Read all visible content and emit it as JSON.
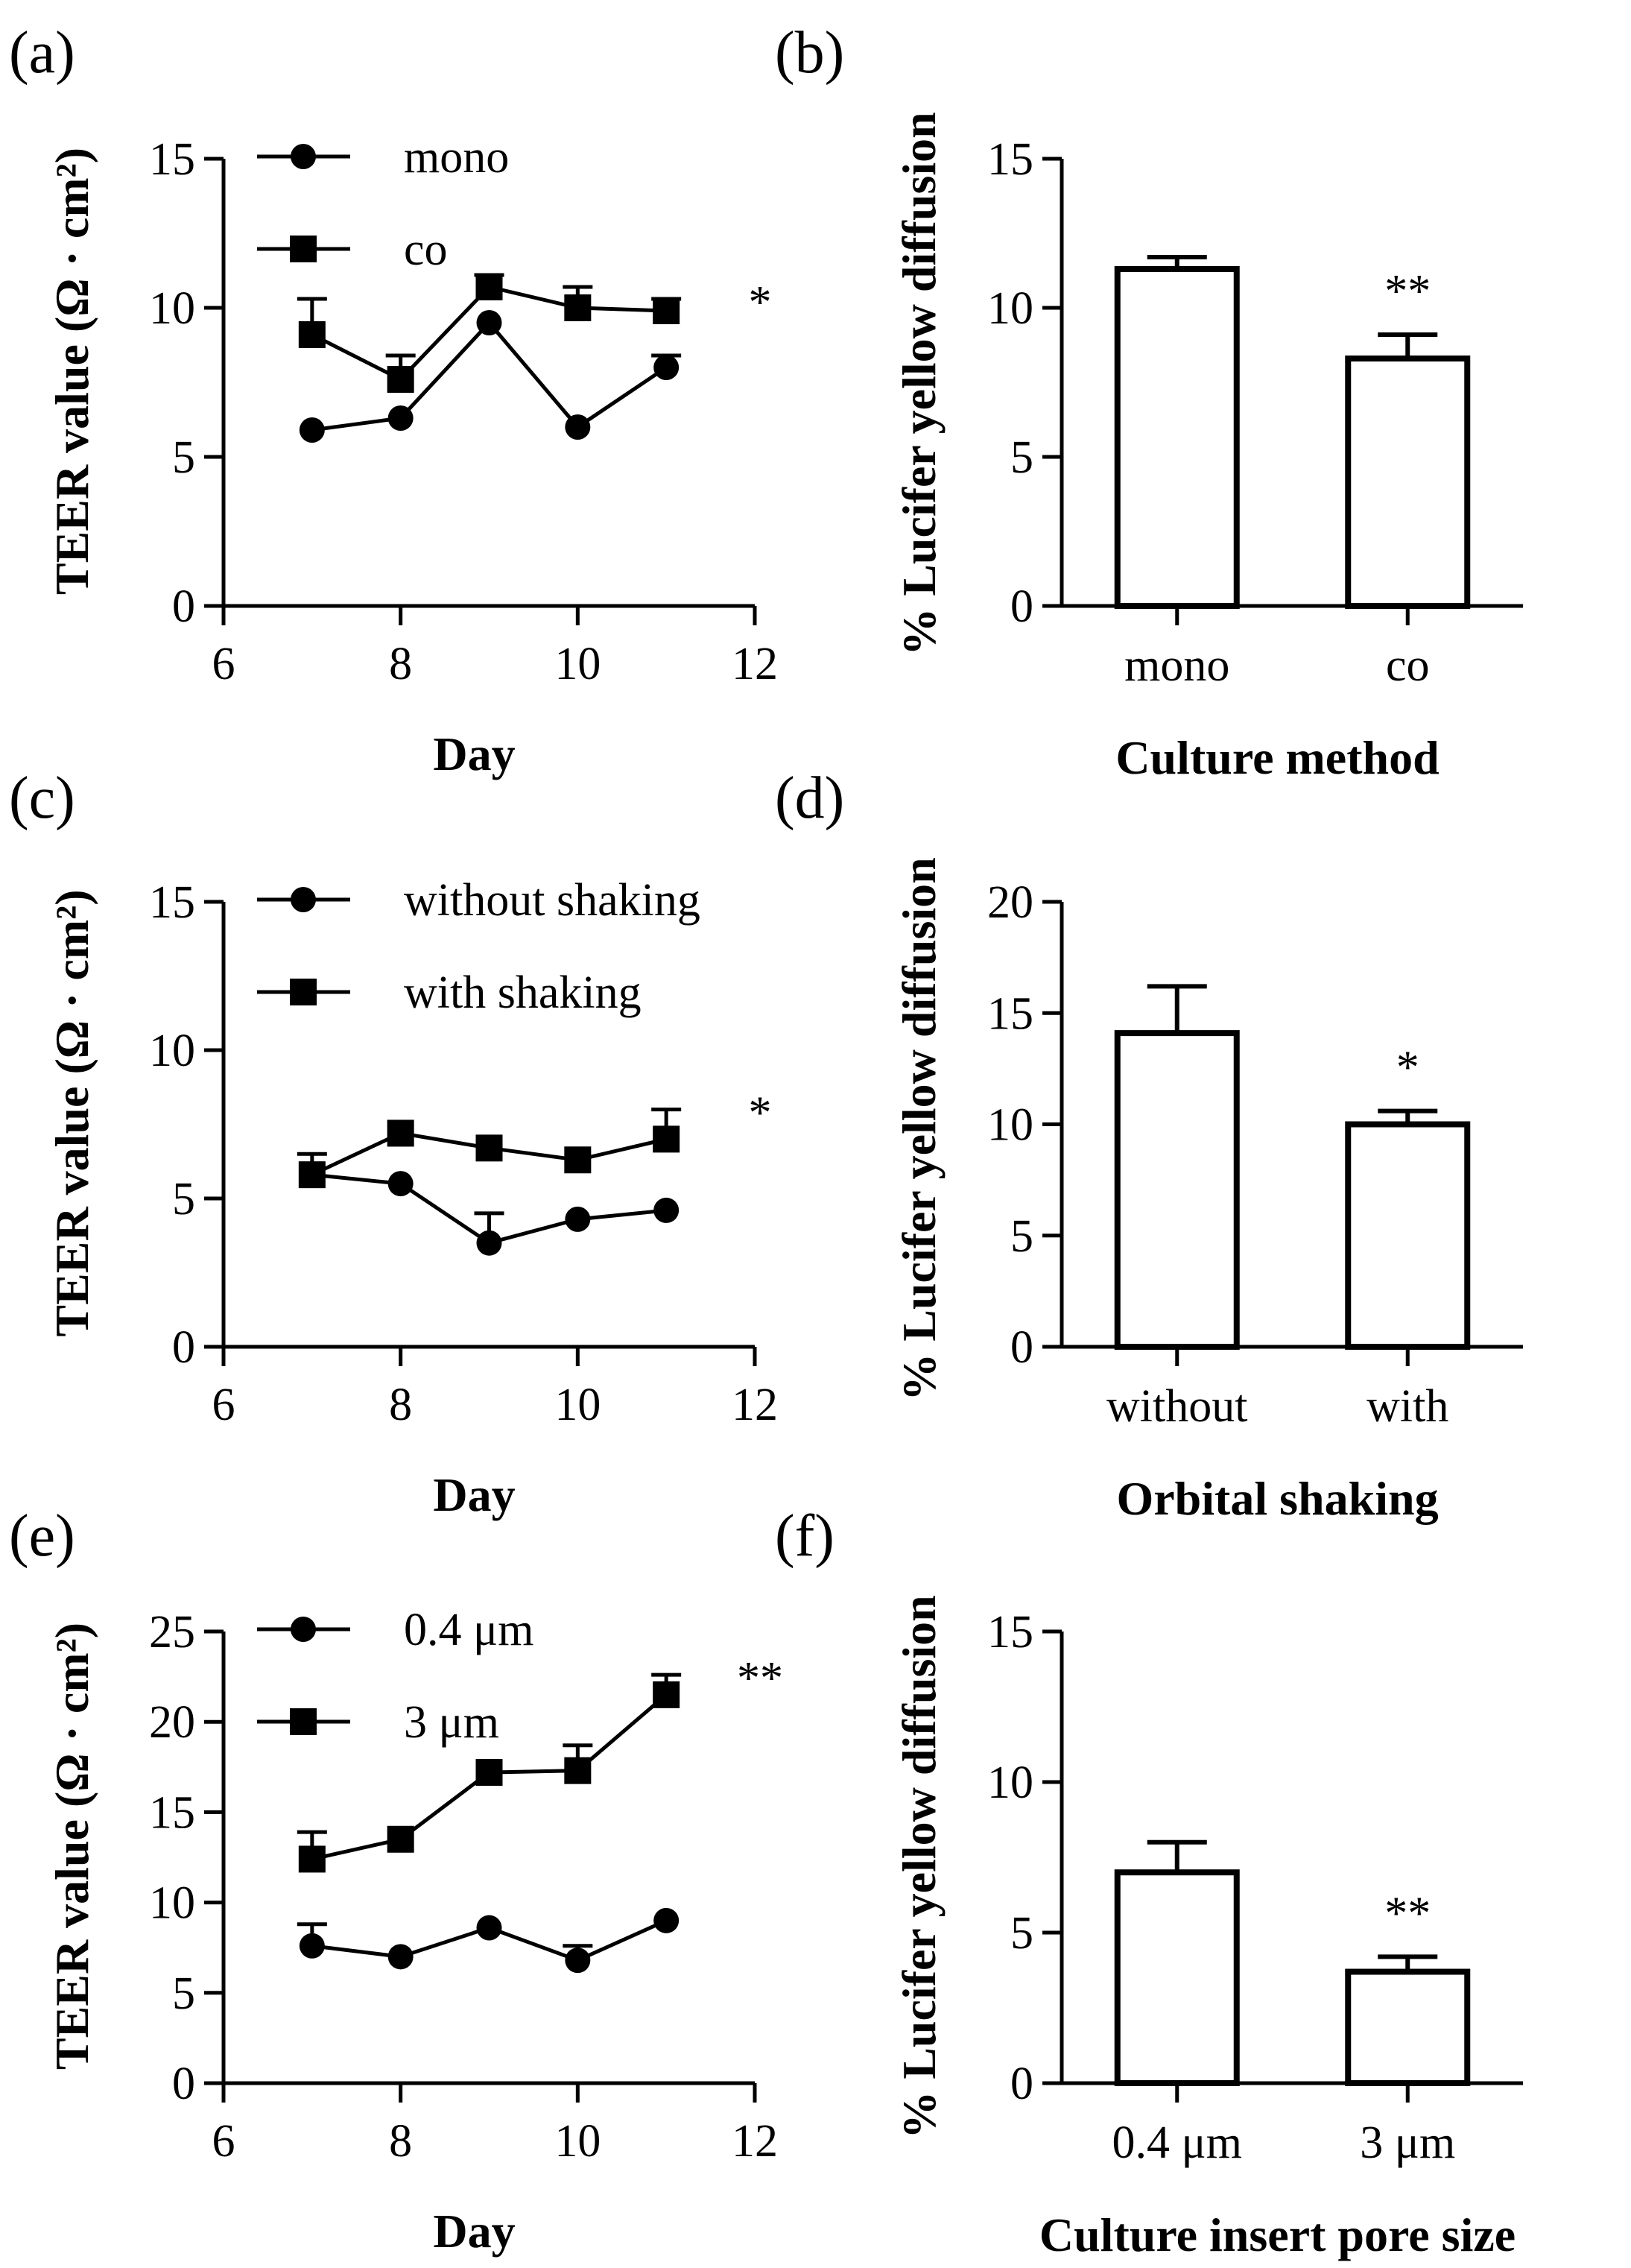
{
  "colors": {
    "ink": "#000000",
    "background": "#ffffff"
  },
  "chart_data": [
    {
      "id": "a",
      "panel_label": "(a)",
      "type": "line",
      "xlabel": "Day",
      "ylabel": "TEER value (Ω · cm²)",
      "xlim": [
        6,
        12
      ],
      "ylim": [
        0,
        15
      ],
      "xticks": [
        6,
        8,
        10,
        12
      ],
      "yticks": [
        0,
        5,
        10,
        15
      ],
      "x": [
        7,
        8,
        9,
        10,
        11
      ],
      "series": [
        {
          "name": "mono",
          "marker": "circle",
          "values": [
            5.9,
            6.3,
            9.5,
            6.0,
            8.0
          ],
          "errors": [
            0,
            0,
            0,
            0,
            0.4
          ]
        },
        {
          "name": "co",
          "marker": "square",
          "values": [
            9.1,
            7.6,
            10.7,
            10.0,
            9.9
          ],
          "errors": [
            1.2,
            0.8,
            0.4,
            0.7,
            0.4
          ]
        }
      ],
      "significance": "*"
    },
    {
      "id": "b",
      "panel_label": "(b)",
      "type": "bar",
      "xlabel": "Culture method",
      "ylabel": "% Lucifer yellow diffusion",
      "ylim": [
        0,
        15
      ],
      "yticks": [
        0,
        5,
        10,
        15
      ],
      "categories": [
        "mono",
        "co"
      ],
      "values": [
        11.3,
        8.3
      ],
      "errors": [
        0.4,
        0.8
      ],
      "significance": [
        "",
        "**"
      ]
    },
    {
      "id": "c",
      "panel_label": "(c)",
      "type": "line",
      "xlabel": "Day",
      "ylabel": "TEER value (Ω · cm²)",
      "xlim": [
        6,
        12
      ],
      "ylim": [
        0,
        15
      ],
      "xticks": [
        6,
        8,
        10,
        12
      ],
      "yticks": [
        0,
        5,
        10,
        15
      ],
      "x": [
        7,
        8,
        9,
        10,
        11
      ],
      "series": [
        {
          "name": "without shaking",
          "marker": "circle",
          "values": [
            5.8,
            5.5,
            3.5,
            4.3,
            4.6
          ],
          "errors": [
            0,
            0,
            1.0,
            0,
            0
          ]
        },
        {
          "name": "with shaking",
          "marker": "square",
          "values": [
            5.8,
            7.2,
            6.7,
            6.3,
            7.0
          ],
          "errors": [
            0.7,
            0,
            0,
            0,
            1.0
          ]
        }
      ],
      "significance": "*"
    },
    {
      "id": "d",
      "panel_label": "(d)",
      "type": "bar",
      "xlabel": "Orbital shaking",
      "ylabel": "% Lucifer yellow diffusion",
      "ylim": [
        0,
        20
      ],
      "yticks": [
        0,
        5,
        10,
        15,
        20
      ],
      "categories": [
        "without",
        "with"
      ],
      "values": [
        14.1,
        10.0
      ],
      "errors": [
        2.1,
        0.6
      ],
      "significance": [
        "",
        "*"
      ]
    },
    {
      "id": "e",
      "panel_label": "(e)",
      "type": "line",
      "xlabel": "Day",
      "ylabel": "TEER value (Ω · cm²)",
      "xlim": [
        6,
        12
      ],
      "ylim": [
        0,
        25
      ],
      "xticks": [
        6,
        8,
        10,
        12
      ],
      "yticks": [
        0,
        5,
        10,
        15,
        20,
        25
      ],
      "x": [
        7,
        8,
        9,
        10,
        11
      ],
      "series": [
        {
          "name": "0.4 μm",
          "marker": "circle",
          "values": [
            7.6,
            7.0,
            8.6,
            6.8,
            9.0
          ],
          "errors": [
            1.2,
            0,
            0,
            0.8,
            0
          ]
        },
        {
          "name": "3 μm",
          "marker": "square",
          "values": [
            12.4,
            13.5,
            17.2,
            17.3,
            21.5
          ],
          "errors": [
            1.5,
            0,
            0,
            1.4,
            1.1
          ]
        }
      ],
      "significance": "**"
    },
    {
      "id": "f",
      "panel_label": "(f)",
      "type": "bar",
      "xlabel": "Culture insert pore size",
      "ylabel": "% Lucifer yellow diffusion",
      "ylim": [
        0,
        15
      ],
      "yticks": [
        0,
        5,
        10,
        15
      ],
      "categories": [
        "0.4 μm",
        "3 μm"
      ],
      "values": [
        7.0,
        3.7
      ],
      "errors": [
        1.0,
        0.5
      ],
      "significance": [
        "",
        "**"
      ]
    }
  ]
}
